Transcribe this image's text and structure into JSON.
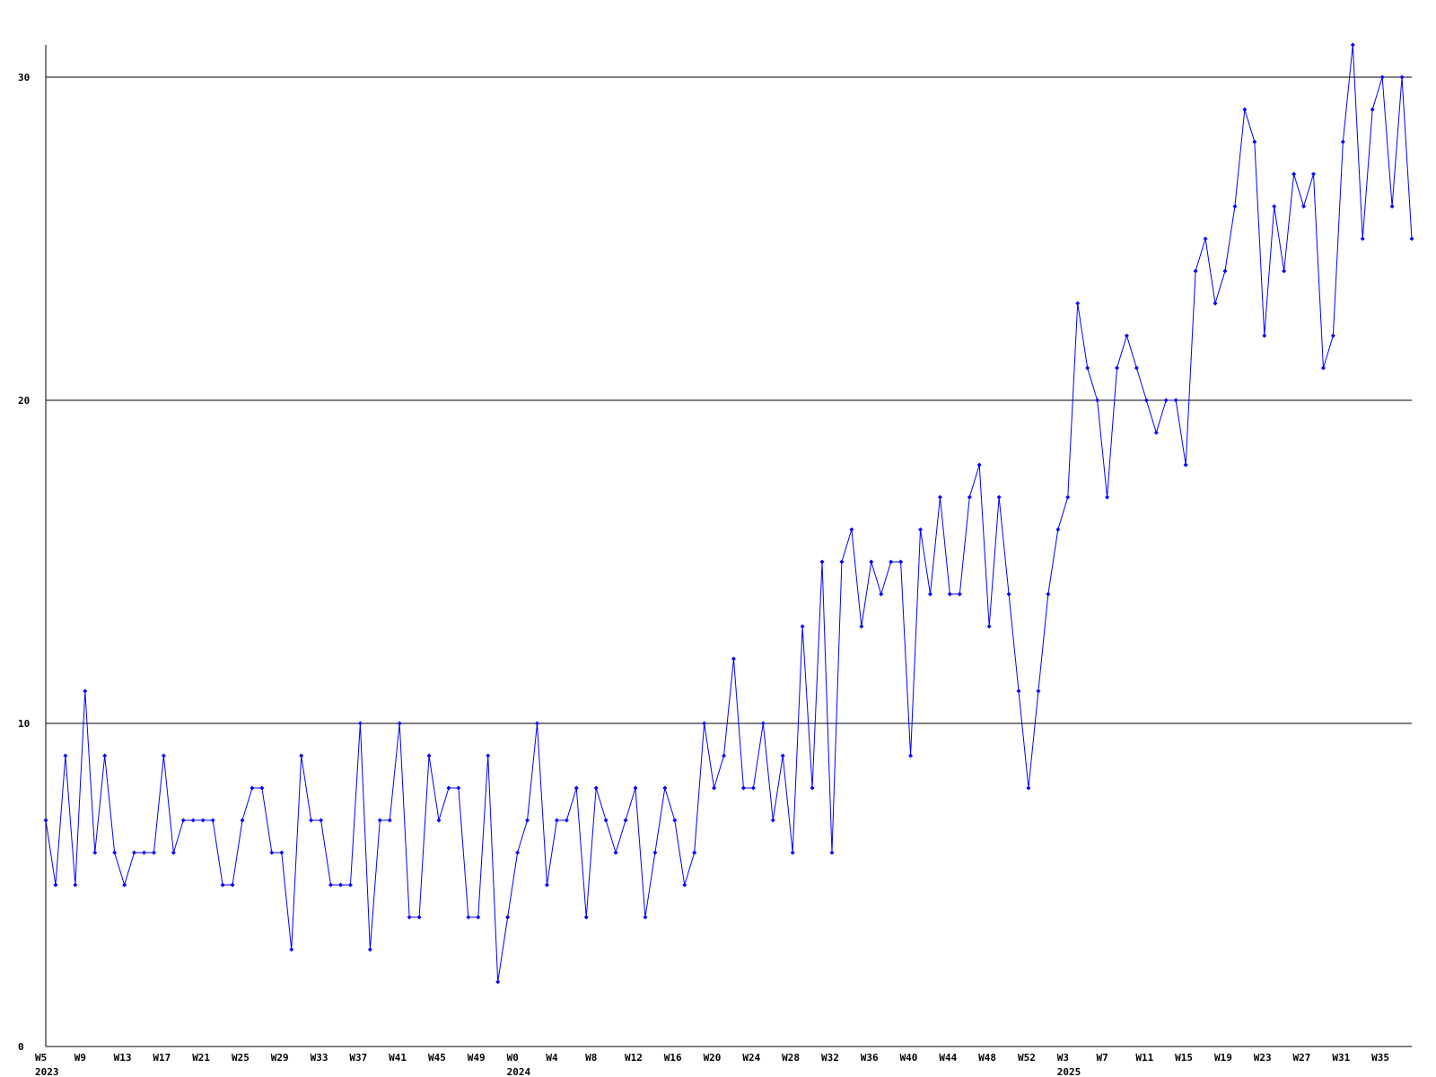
{
  "chart_data": {
    "type": "line",
    "categories": [
      "W5",
      null,
      null,
      null,
      "W9",
      null,
      null,
      null,
      "W13",
      null,
      null,
      null,
      "W17",
      null,
      null,
      null,
      "W21",
      null,
      null,
      null,
      "W25",
      null,
      null,
      null,
      "W29",
      null,
      null,
      null,
      "W33",
      null,
      null,
      null,
      "W37",
      null,
      null,
      null,
      "W41",
      null,
      null,
      null,
      "W45",
      null,
      null,
      null,
      "W49",
      null,
      null,
      null,
      "W0",
      null,
      null,
      null,
      "W4",
      null,
      null,
      null,
      "W8",
      null,
      null,
      null,
      "W12",
      null,
      null,
      null,
      "W16",
      null,
      null,
      null,
      "W20",
      null,
      null,
      null,
      "W24",
      null,
      null,
      null,
      "W28",
      null,
      null,
      null,
      "W32",
      null,
      null,
      null,
      "W36",
      null,
      null,
      null,
      "W40",
      null,
      null,
      null,
      "W44",
      null,
      null,
      null,
      "W48",
      null,
      null,
      null,
      "W52",
      null,
      null,
      null,
      "W3",
      null,
      null,
      null,
      "W7",
      null,
      null,
      null,
      "W11",
      null,
      null,
      null,
      "W15",
      null,
      null,
      null,
      "W19",
      null,
      null,
      null,
      "W23",
      null,
      null,
      null,
      "W27",
      null,
      null,
      null,
      "W31",
      null,
      null,
      null,
      "W35",
      null,
      null,
      null
    ],
    "years": [
      "2023",
      null,
      null,
      null,
      null,
      null,
      null,
      null,
      null,
      null,
      null,
      null,
      null,
      null,
      null,
      null,
      null,
      null,
      null,
      null,
      null,
      null,
      null,
      null,
      null,
      null,
      null,
      null,
      null,
      null,
      null,
      null,
      null,
      null,
      null,
      null,
      null,
      null,
      null,
      null,
      null,
      null,
      null,
      null,
      null,
      null,
      null,
      null,
      "2024",
      null,
      null,
      null,
      null,
      null,
      null,
      null,
      null,
      null,
      null,
      null,
      null,
      null,
      null,
      null,
      null,
      null,
      null,
      null,
      null,
      null,
      null,
      null,
      null,
      null,
      null,
      null,
      null,
      null,
      null,
      null,
      null,
      null,
      null,
      null,
      null,
      null,
      null,
      null,
      null,
      null,
      null,
      null,
      null,
      null,
      null,
      null,
      null,
      null,
      null,
      null,
      null,
      null,
      null,
      null,
      "2025",
      null,
      null,
      null,
      null,
      null,
      null,
      null,
      null,
      null,
      null,
      null,
      null,
      null,
      null,
      null,
      null,
      null,
      null,
      null,
      null,
      null,
      null,
      null,
      null,
      null,
      null,
      null,
      null,
      null,
      null,
      null,
      null,
      null,
      null
    ],
    "series": [
      {
        "color": "#0000ff",
        "values": [
          7,
          5,
          9,
          5,
          11,
          6,
          9,
          6,
          5,
          6,
          6,
          6,
          9,
          6,
          7,
          7,
          7,
          7,
          5,
          5,
          7,
          8,
          8,
          6,
          6,
          3,
          9,
          7,
          7,
          5,
          5,
          5,
          10,
          3,
          7,
          7,
          10,
          4,
          4,
          9,
          7,
          8,
          8,
          4,
          4,
          9,
          2,
          4,
          6,
          7,
          10,
          5,
          7,
          7,
          8,
          4,
          8,
          7,
          6,
          7,
          8,
          4,
          6,
          8,
          7,
          5,
          6,
          10,
          8,
          9,
          12,
          8,
          8,
          10,
          7,
          9,
          6,
          13,
          8,
          15,
          6,
          15,
          16,
          13,
          15,
          14,
          15,
          15,
          9,
          16,
          14,
          17,
          14,
          14,
          17,
          18,
          13,
          17,
          14,
          11,
          8,
          11,
          14,
          16,
          17,
          23,
          21,
          20,
          17,
          21,
          22,
          21,
          20,
          19,
          20,
          20,
          18,
          24,
          25,
          23,
          24,
          26,
          29,
          28,
          22,
          26,
          24,
          27,
          26,
          27,
          21,
          22,
          28,
          31,
          25,
          29,
          30,
          26,
          30,
          25
        ]
      }
    ],
    "ylim": [
      0,
      31
    ],
    "yticks": [
      0,
      10,
      20,
      30
    ],
    "grid": true
  }
}
